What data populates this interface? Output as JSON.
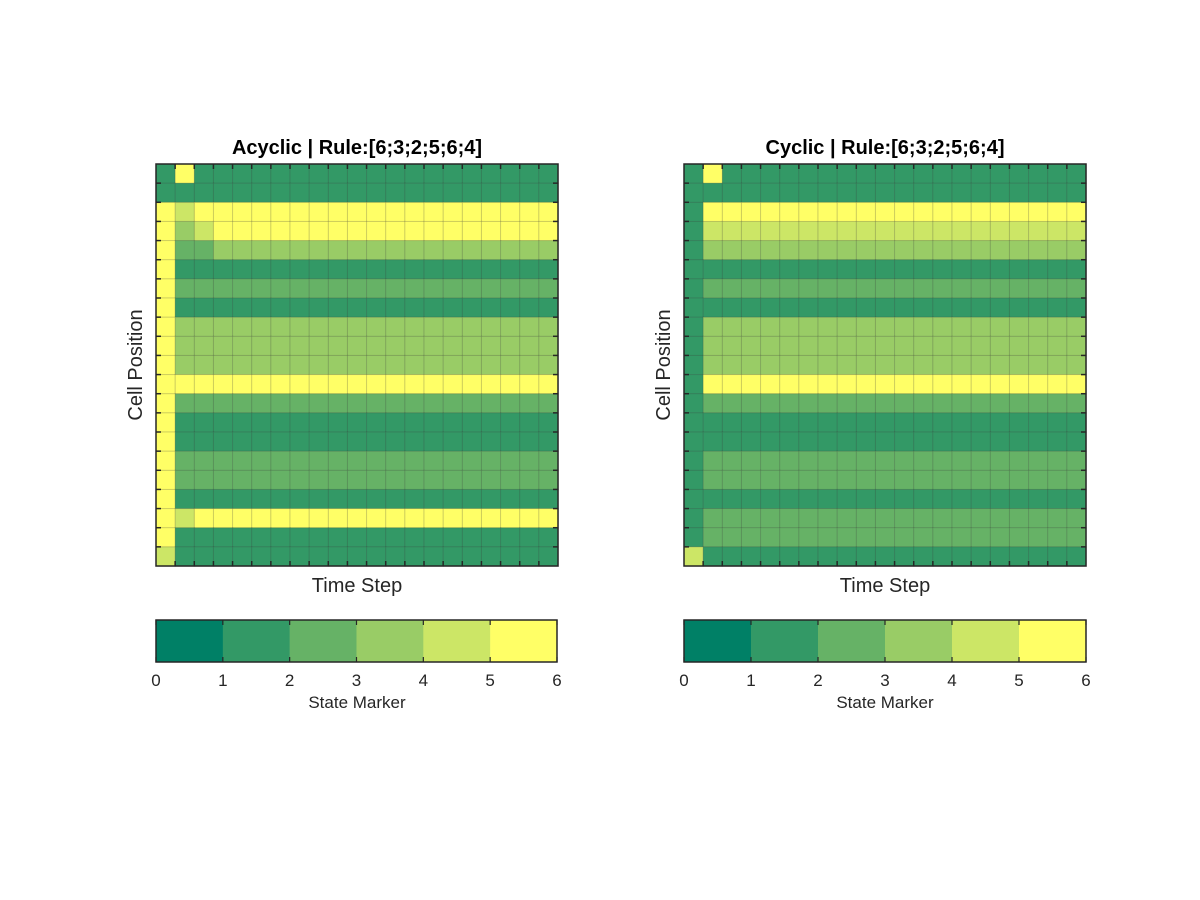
{
  "chart_data": [
    {
      "type": "heatmap",
      "title": "Acyclic | Rule:[6;3;2;5;6;4]",
      "xlabel": "Time Step",
      "ylabel": "Cell Position",
      "colorbar": {
        "label": "State Marker",
        "ticks": [
          "0",
          "1",
          "2",
          "3",
          "4",
          "5",
          "6"
        ],
        "range": [
          0,
          6
        ],
        "colors": [
          "#008066",
          "#339966",
          "#66b266",
          "#99cc66",
          "#cce666",
          "#ffff66"
        ]
      },
      "cell_grid_visible": true,
      "row_groups": [
        [
          1,
          5,
          1,
          1,
          1,
          1,
          1,
          1,
          1,
          1,
          1,
          1,
          1,
          1,
          1,
          1,
          1,
          1,
          1,
          1,
          1
        ],
        [
          1,
          1,
          1,
          1,
          1,
          1,
          1,
          1,
          1,
          1,
          1,
          1,
          1,
          1,
          1,
          1,
          1,
          1,
          1,
          1,
          1
        ],
        [
          6,
          4,
          5,
          5,
          5,
          5,
          5,
          5,
          5,
          5,
          5,
          5,
          5,
          5,
          5,
          5,
          5,
          5,
          5,
          5,
          5
        ],
        [
          6,
          3,
          4,
          5,
          5,
          5,
          5,
          5,
          5,
          5,
          5,
          5,
          5,
          5,
          5,
          5,
          5,
          5,
          5,
          5,
          5
        ],
        [
          6,
          2,
          2,
          3,
          3,
          3,
          3,
          3,
          3,
          3,
          3,
          3,
          3,
          3,
          3,
          3,
          3,
          3,
          3,
          3,
          3
        ],
        [
          6,
          1,
          1,
          1,
          1,
          1,
          1,
          1,
          1,
          1,
          1,
          1,
          1,
          1,
          1,
          1,
          1,
          1,
          1,
          1,
          1
        ],
        [
          6,
          2,
          2,
          2,
          2,
          2,
          2,
          2,
          2,
          2,
          2,
          2,
          2,
          2,
          2,
          2,
          2,
          2,
          2,
          2,
          2
        ],
        [
          6,
          1,
          1,
          1,
          1,
          1,
          1,
          1,
          1,
          1,
          1,
          1,
          1,
          1,
          1,
          1,
          1,
          1,
          1,
          1,
          1
        ],
        [
          6,
          3,
          3,
          3,
          3,
          3,
          3,
          3,
          3,
          3,
          3,
          3,
          3,
          3,
          3,
          3,
          3,
          3,
          3,
          3,
          3
        ],
        [
          6,
          3,
          3,
          3,
          3,
          3,
          3,
          3,
          3,
          3,
          3,
          3,
          3,
          3,
          3,
          3,
          3,
          3,
          3,
          3,
          3
        ],
        [
          6,
          3,
          3,
          3,
          3,
          3,
          3,
          3,
          3,
          3,
          3,
          3,
          3,
          3,
          3,
          3,
          3,
          3,
          3,
          3,
          3
        ],
        [
          6,
          5,
          5,
          5,
          5,
          5,
          5,
          5,
          5,
          5,
          5,
          5,
          5,
          5,
          5,
          5,
          5,
          5,
          5,
          5,
          5
        ],
        [
          6,
          2,
          2,
          2,
          2,
          2,
          2,
          2,
          2,
          2,
          2,
          2,
          2,
          2,
          2,
          2,
          2,
          2,
          2,
          2,
          2
        ],
        [
          6,
          1,
          1,
          1,
          1,
          1,
          1,
          1,
          1,
          1,
          1,
          1,
          1,
          1,
          1,
          1,
          1,
          1,
          1,
          1,
          1
        ],
        [
          6,
          1,
          1,
          1,
          1,
          1,
          1,
          1,
          1,
          1,
          1,
          1,
          1,
          1,
          1,
          1,
          1,
          1,
          1,
          1,
          1
        ],
        [
          6,
          2,
          2,
          2,
          2,
          2,
          2,
          2,
          2,
          2,
          2,
          2,
          2,
          2,
          2,
          2,
          2,
          2,
          2,
          2,
          2
        ],
        [
          6,
          2,
          2,
          2,
          2,
          2,
          2,
          2,
          2,
          2,
          2,
          2,
          2,
          2,
          2,
          2,
          2,
          2,
          2,
          2,
          2
        ],
        [
          6,
          1,
          1,
          1,
          1,
          1,
          1,
          1,
          1,
          1,
          1,
          1,
          1,
          1,
          1,
          1,
          1,
          1,
          1,
          1,
          1
        ],
        [
          6,
          4,
          5,
          5,
          5,
          5,
          5,
          5,
          5,
          5,
          5,
          5,
          5,
          5,
          5,
          5,
          5,
          5,
          5,
          5,
          5
        ],
        [
          6,
          1,
          1,
          1,
          1,
          1,
          1,
          1,
          1,
          1,
          1,
          1,
          1,
          1,
          1,
          1,
          1,
          1,
          1,
          1,
          1
        ],
        [
          4,
          1,
          1,
          1,
          1,
          1,
          1,
          1,
          1,
          1,
          1,
          1,
          1,
          1,
          1,
          1,
          1,
          1,
          1,
          1,
          1
        ]
      ]
    },
    {
      "type": "heatmap",
      "title": "Cyclic | Rule:[6;3;2;5;6;4]",
      "xlabel": "Time Step",
      "ylabel": "Cell Position",
      "colorbar": {
        "label": "State Marker",
        "ticks": [
          "0",
          "1",
          "2",
          "3",
          "4",
          "5",
          "6"
        ],
        "range": [
          0,
          6
        ],
        "colors": [
          "#008066",
          "#339966",
          "#66b266",
          "#99cc66",
          "#cce666",
          "#ffff66"
        ]
      },
      "cell_grid_visible": true,
      "row_groups": [
        [
          1,
          5,
          1,
          1,
          1,
          1,
          1,
          1,
          1,
          1,
          1,
          1,
          1,
          1,
          1,
          1,
          1,
          1,
          1,
          1,
          1
        ],
        [
          1,
          1,
          1,
          1,
          1,
          1,
          1,
          1,
          1,
          1,
          1,
          1,
          1,
          1,
          1,
          1,
          1,
          1,
          1,
          1,
          1
        ],
        [
          1,
          5,
          5,
          5,
          5,
          5,
          5,
          5,
          5,
          5,
          5,
          5,
          5,
          5,
          5,
          5,
          5,
          5,
          5,
          5,
          5
        ],
        [
          1,
          4,
          4,
          4,
          4,
          4,
          4,
          4,
          4,
          4,
          4,
          4,
          4,
          4,
          4,
          4,
          4,
          4,
          4,
          4,
          4
        ],
        [
          1,
          3,
          3,
          3,
          3,
          3,
          3,
          3,
          3,
          3,
          3,
          3,
          3,
          3,
          3,
          3,
          3,
          3,
          3,
          3,
          3
        ],
        [
          1,
          1,
          1,
          1,
          1,
          1,
          1,
          1,
          1,
          1,
          1,
          1,
          1,
          1,
          1,
          1,
          1,
          1,
          1,
          1,
          1
        ],
        [
          1,
          2,
          2,
          2,
          2,
          2,
          2,
          2,
          2,
          2,
          2,
          2,
          2,
          2,
          2,
          2,
          2,
          2,
          2,
          2,
          2
        ],
        [
          1,
          1,
          1,
          1,
          1,
          1,
          1,
          1,
          1,
          1,
          1,
          1,
          1,
          1,
          1,
          1,
          1,
          1,
          1,
          1,
          1
        ],
        [
          1,
          3,
          3,
          3,
          3,
          3,
          3,
          3,
          3,
          3,
          3,
          3,
          3,
          3,
          3,
          3,
          3,
          3,
          3,
          3,
          3
        ],
        [
          1,
          3,
          3,
          3,
          3,
          3,
          3,
          3,
          3,
          3,
          3,
          3,
          3,
          3,
          3,
          3,
          3,
          3,
          3,
          3,
          3
        ],
        [
          1,
          3,
          3,
          3,
          3,
          3,
          3,
          3,
          3,
          3,
          3,
          3,
          3,
          3,
          3,
          3,
          3,
          3,
          3,
          3,
          3
        ],
        [
          1,
          5,
          5,
          5,
          5,
          5,
          5,
          5,
          5,
          5,
          5,
          5,
          5,
          5,
          5,
          5,
          5,
          5,
          5,
          5,
          5
        ],
        [
          1,
          2,
          2,
          2,
          2,
          2,
          2,
          2,
          2,
          2,
          2,
          2,
          2,
          2,
          2,
          2,
          2,
          2,
          2,
          2,
          2
        ],
        [
          1,
          1,
          1,
          1,
          1,
          1,
          1,
          1,
          1,
          1,
          1,
          1,
          1,
          1,
          1,
          1,
          1,
          1,
          1,
          1,
          1
        ],
        [
          1,
          1,
          1,
          1,
          1,
          1,
          1,
          1,
          1,
          1,
          1,
          1,
          1,
          1,
          1,
          1,
          1,
          1,
          1,
          1,
          1
        ],
        [
          1,
          2,
          2,
          2,
          2,
          2,
          2,
          2,
          2,
          2,
          2,
          2,
          2,
          2,
          2,
          2,
          2,
          2,
          2,
          2,
          2
        ],
        [
          1,
          2,
          2,
          2,
          2,
          2,
          2,
          2,
          2,
          2,
          2,
          2,
          2,
          2,
          2,
          2,
          2,
          2,
          2,
          2,
          2
        ],
        [
          1,
          1,
          1,
          1,
          1,
          1,
          1,
          1,
          1,
          1,
          1,
          1,
          1,
          1,
          1,
          1,
          1,
          1,
          1,
          1,
          1
        ],
        [
          1,
          2,
          2,
          2,
          2,
          2,
          2,
          2,
          2,
          2,
          2,
          2,
          2,
          2,
          2,
          2,
          2,
          2,
          2,
          2,
          2
        ],
        [
          1,
          2,
          2,
          2,
          2,
          2,
          2,
          2,
          2,
          2,
          2,
          2,
          2,
          2,
          2,
          2,
          2,
          2,
          2,
          2,
          2
        ],
        [
          4,
          1,
          1,
          1,
          1,
          1,
          1,
          1,
          1,
          1,
          1,
          1,
          1,
          1,
          1,
          1,
          1,
          1,
          1,
          1,
          1
        ]
      ]
    }
  ]
}
